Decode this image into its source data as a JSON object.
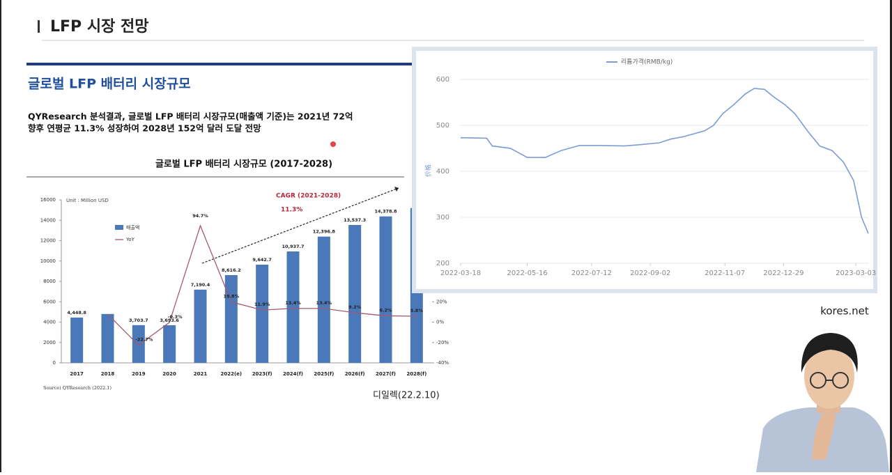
{
  "header": {
    "title": "LFP 시장 전망"
  },
  "section": {
    "title": "글로벌 LFP 배터리 시장규모",
    "lines": [
      "QYResearch 분석결과, 글로벌 LFP 배터리 시장규모(매출액 기준)는 2021년 72억",
      "향후 연평균 11.3% 성장하여 2028년 152억 달러 도달 전망"
    ]
  },
  "chart_data": [
    {
      "type": "bar_line",
      "title": "글로벌 LFP 배터리 시장규모 (2017-2028)",
      "unit_label": "Unit : Million USD",
      "annotations": [
        "CAGR (2021-2028)",
        "11.3%"
      ],
      "source": "Source) QYResearch (2022.1)",
      "categories": [
        "2017",
        "2018",
        "2019",
        "2020",
        "2021",
        "2022(e)",
        "2023(f)",
        "2024(f)",
        "2025(f)",
        "2026(f)",
        "2027(f)",
        "2028(f)"
      ],
      "series": [
        {
          "name": "매출액",
          "color": "#4a78b8",
          "values": [
            4448.8,
            4800,
            3703.7,
            3693.6,
            7190.4,
            8616.2,
            9642.7,
            10937.7,
            12396.8,
            13537.3,
            14378.8,
            15200
          ],
          "value_labels": [
            "4,448.8",
            null,
            "3,703.7",
            "3,693.6",
            "7,190.4",
            "8,616.2",
            "9,642.7",
            "10,937.7",
            "12,396.8",
            "13,537.3",
            "14,378.8",
            null
          ]
        },
        {
          "name": "YoY",
          "color": "#a35a6c",
          "axis": "y2",
          "values": [
            null,
            7.9,
            -22.7,
            -0.3,
            94.7,
            19.8,
            11.9,
            13.4,
            13.4,
            9.2,
            6.2,
            5.8
          ],
          "value_labels": [
            null,
            null,
            "-22.7%",
            "-0.3%",
            "94.7%",
            "19.8%",
            "11.9%",
            "13.4%",
            "13.4%",
            "9.2%",
            "6.2%",
            "5.8%"
          ]
        }
      ],
      "ylim": [
        0,
        16000
      ],
      "yticks": [
        0,
        2000,
        4000,
        6000,
        8000,
        10000,
        12000,
        14000,
        16000
      ],
      "y2lim": [
        -40,
        120
      ],
      "y2ticks": [
        {
          "value": -40,
          "label": "-40%"
        },
        {
          "value": -20,
          "label": "-20%"
        },
        {
          "value": 0,
          "label": "0%"
        },
        {
          "value": 20,
          "label": "20%"
        }
      ]
    },
    {
      "type": "line",
      "y_label": "价格",
      "x": [
        "2022-03-18",
        "2022-04-10",
        "2022-04-15",
        "2022-05-01",
        "2022-05-16",
        "2022-06-01",
        "2022-06-15",
        "2022-07-01",
        "2022-07-20",
        "2022-08-10",
        "2022-08-25",
        "2022-09-10",
        "2022-09-20",
        "2022-10-01",
        "2022-10-10",
        "2022-10-20",
        "2022-10-28",
        "2022-11-05",
        "2022-11-15",
        "2022-11-25",
        "2022-12-03",
        "2022-12-12",
        "2022-12-20",
        "2022-12-30",
        "2023-01-08",
        "2023-01-20",
        "2023-01-30",
        "2023-02-10",
        "2023-02-20",
        "2023-03-01",
        "2023-03-08",
        "2023-03-14"
      ],
      "series": [
        {
          "name": "리튬가격(RMB/kg)",
          "color": "#7b9ad6",
          "values": [
            473,
            472,
            455,
            450,
            430,
            430,
            445,
            456,
            456,
            455,
            458,
            462,
            470,
            475,
            481,
            488,
            500,
            525,
            545,
            568,
            580,
            578,
            562,
            545,
            525,
            485,
            455,
            445,
            420,
            380,
            300,
            265
          ]
        }
      ],
      "xlim": [
        "2022-03-18",
        "2023-03-14"
      ],
      "xticks": [
        "2022-03-18",
        "2022-05-16",
        "2022-07-12",
        "2022-09-02",
        "2022-11-07",
        "2022-12-29",
        "2023-03-03"
      ],
      "ylim": [
        200,
        630
      ],
      "yticks": [
        200,
        300,
        400,
        500,
        600
      ],
      "grid": true
    }
  ],
  "credit": "디일렉(22.2.10)",
  "site": "kores.net"
}
